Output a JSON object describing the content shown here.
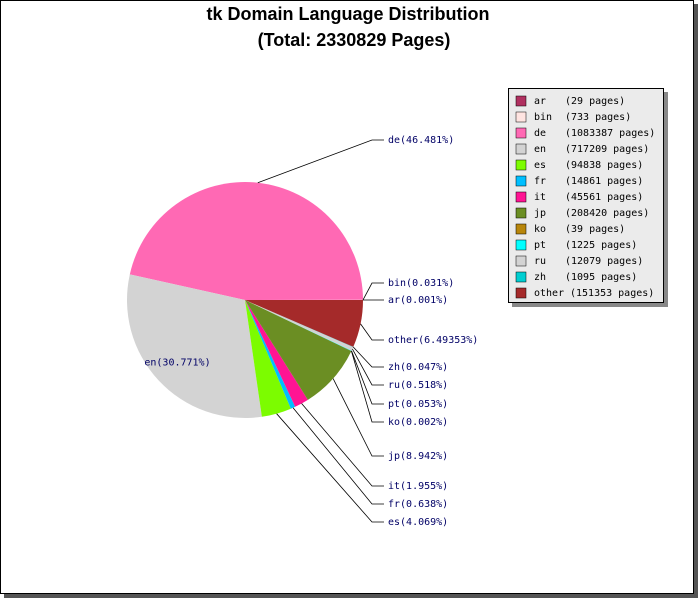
{
  "chart_data": {
    "type": "pie",
    "title": "tk Domain Language Distribution",
    "subtitle": "(Total: 2330829 Pages)",
    "categories": [
      "ar",
      "bin",
      "de",
      "en",
      "es",
      "fr",
      "it",
      "jp",
      "ko",
      "pt",
      "ru",
      "zh",
      "other"
    ],
    "values": [
      0.001,
      0.031,
      46.481,
      30.771,
      4.069,
      0.638,
      1.955,
      8.942,
      0.002,
      0.053,
      0.518,
      0.047,
      6.49353
    ],
    "value_labels": [
      "ar(0.001%)",
      "bin(0.031%)",
      "de(46.481%)",
      "en(30.771%)",
      "es(4.069%)",
      "fr(0.638%)",
      "it(1.955%)",
      "jp(8.942%)",
      "ko(0.002%)",
      "pt(0.053%)",
      "ru(0.518%)",
      "zh(0.047%)",
      "other(6.49353%)"
    ],
    "legend_labels": [
      "(29 pages)",
      "(733 pages)",
      "(1083387 pages)",
      "(717209 pages)",
      "(94838 pages)",
      "(14861 pages)",
      "(45561 pages)",
      "(208420 pages)",
      "(39 pages)",
      "(1225 pages)",
      "(12079 pages)",
      "(1095 pages)",
      "(151353 pages)"
    ],
    "colors": [
      "#b03060",
      "#ffe4e1",
      "#ff69b4",
      "#d3d3d3",
      "#7cfc00",
      "#00bfff",
      "#ff1493",
      "#6b8e23",
      "#b8860b",
      "#00ffff",
      "#d3d3d3",
      "#00ced1",
      "#a52a2a"
    ],
    "legend_position": "upper right"
  }
}
